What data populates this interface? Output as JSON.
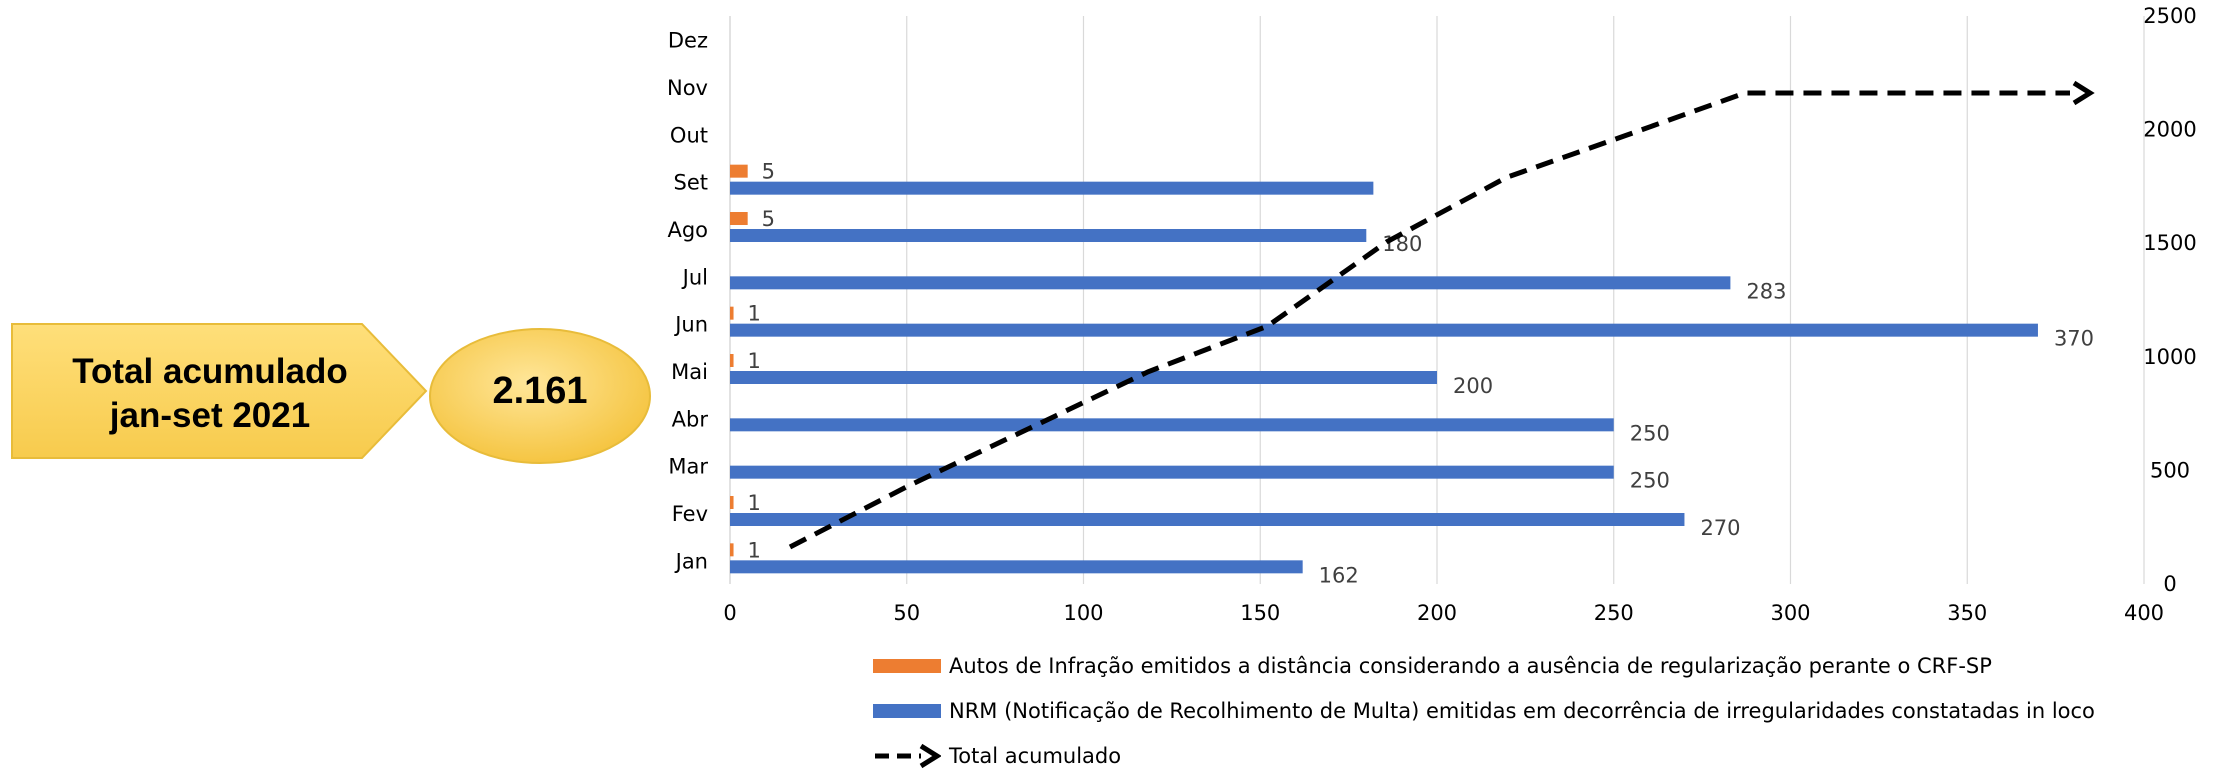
{
  "callout": {
    "label_line1": "Total acumulado",
    "label_line2": "jan-set 2021",
    "total_value": "2.161"
  },
  "colors": {
    "autos": "#ED7D31",
    "nrm": "#4472C4",
    "total": "#000000",
    "callout_fill": "#FFD966",
    "grid": "#D9D9D9"
  },
  "chart_data": {
    "type": "bar",
    "orientation": "horizontal",
    "categories": [
      "Jan",
      "Fev",
      "Mar",
      "Abr",
      "Mai",
      "Jun",
      "Jul",
      "Ago",
      "Set",
      "Out",
      "Nov",
      "Dez"
    ],
    "series": [
      {
        "name": "Autos de Infração emitidos a distância considerando a ausência de regularização perante o CRF-SP",
        "type": "bar",
        "values": [
          1,
          1,
          0,
          0,
          1,
          1,
          0,
          5,
          5,
          null,
          null,
          null
        ],
        "labels": [
          "1",
          "1",
          "",
          "",
          "1",
          "1",
          "",
          "5",
          "5",
          "",
          "",
          ""
        ]
      },
      {
        "name": "NRM (Notificação de Recolhimento de Multa) emitidas em decorrência de irregularidades constatadas in loco",
        "type": "bar",
        "values": [
          162,
          270,
          250,
          250,
          200,
          370,
          283,
          180,
          182,
          null,
          null,
          null
        ],
        "labels": [
          "162",
          "270",
          "250",
          "250",
          "200",
          "370",
          "283",
          "180",
          "",
          "",
          "",
          ""
        ]
      },
      {
        "name": "Total acumulado",
        "type": "line",
        "axis": "secondary",
        "values": [
          163,
          434,
          684,
          934,
          1135,
          1506,
          1789,
          1974,
          2161,
          2161,
          2161,
          2161
        ]
      }
    ],
    "xlim": [
      0,
      400
    ],
    "x_ticks": [
      0,
      50,
      100,
      150,
      200,
      250,
      300,
      350,
      400
    ],
    "x_tick_labels": [
      "0",
      "50",
      "100",
      "150",
      "200",
      "250",
      "300",
      "350",
      "400"
    ],
    "secondary_lim": [
      0,
      2500
    ],
    "secondary_ticks": [
      0,
      500,
      1000,
      1500,
      2000,
      2500
    ],
    "secondary_tick_labels": [
      "0",
      "500",
      "1000",
      "1500",
      "2000",
      "2500"
    ],
    "grid": true,
    "legend_position": "bottom"
  }
}
